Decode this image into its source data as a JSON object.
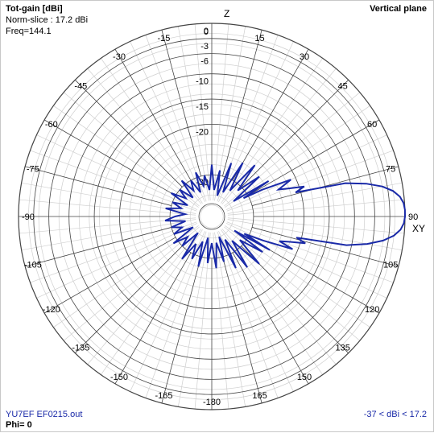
{
  "header": {
    "quantity": "Tot-gain [dBi]",
    "norm": "Norm-slice : 17.2 dBi",
    "freq": "Freq=144.1",
    "plane": "Vertical plane"
  },
  "footer": {
    "file": "YU7EF EF0215.out",
    "phi": "Phi= 0",
    "range": "-37 < dBi < 17.2"
  },
  "axis_labels": {
    "z": "Z",
    "xy": "XY"
  },
  "colors": {
    "trace": "#1a2aa8",
    "grid_dark": "#444444",
    "grid_light": "#cfcfcf",
    "text_blue": "#1a2aa8"
  },
  "chart_data": {
    "type": "polar",
    "angle_ticks": [
      "0",
      "15",
      "30",
      "45",
      "60",
      "75",
      "90",
      "105",
      "120",
      "135",
      "150",
      "165",
      "-180",
      "-165",
      "-150",
      "-135",
      "-120",
      "-105",
      "-90",
      "-75",
      "-60",
      "-45",
      "-30",
      "-15"
    ],
    "radial_ticks": [
      "0",
      "-3",
      "-6",
      "-10",
      "-15",
      "-20",
      "-30"
    ],
    "radial_tick_db": [
      0,
      -3,
      -6,
      -10,
      -15,
      -20,
      -30
    ],
    "db_min": -37,
    "db_max": 0,
    "pattern": {
      "angles_deg": [
        0,
        5,
        10,
        15,
        20,
        25,
        30,
        35,
        40,
        45,
        50,
        55,
        58,
        60,
        62,
        65,
        68,
        70,
        72,
        74,
        76,
        78,
        80,
        82,
        84,
        86,
        88,
        90,
        92,
        94,
        96,
        98,
        100,
        102,
        104,
        106,
        108,
        110,
        112,
        115,
        118,
        120,
        122,
        125,
        130,
        135,
        140,
        145,
        150,
        155,
        160,
        165,
        170,
        175,
        180,
        185,
        190,
        195,
        200,
        205,
        210,
        215,
        220,
        225,
        230,
        235,
        240,
        245,
        250,
        255,
        260,
        265,
        270,
        275,
        280,
        285,
        290,
        295,
        300,
        305,
        310,
        315,
        320,
        325,
        330,
        335,
        340,
        345,
        350,
        355
      ],
      "gain_db": [
        -28,
        -33,
        -29,
        -34,
        -27,
        -33,
        -26,
        -32,
        -25,
        -31,
        -26,
        -33,
        -25,
        -31,
        -27,
        -21,
        -24,
        -22,
        -19,
        -21,
        -11,
        -7,
        -4,
        -2,
        -0.8,
        -0.2,
        0,
        0,
        -0.2,
        -0.8,
        -2,
        -4,
        -7,
        -11,
        -21,
        -19,
        -22,
        -24,
        -21,
        -27,
        -31,
        -25,
        -33,
        -26,
        -31,
        -25,
        -32,
        -26,
        -33,
        -27,
        -34,
        -29,
        -33,
        -28,
        -33,
        -29,
        -34,
        -28,
        -33,
        -29,
        -32,
        -28,
        -34,
        -30,
        -32,
        -29,
        -34,
        -30,
        -32,
        -30,
        -33,
        -29,
        -31,
        -33,
        -29,
        -32,
        -30,
        -33,
        -29,
        -32,
        -30,
        -33,
        -29,
        -32,
        -30,
        -33,
        -29,
        -32,
        -30,
        -33
      ]
    }
  }
}
